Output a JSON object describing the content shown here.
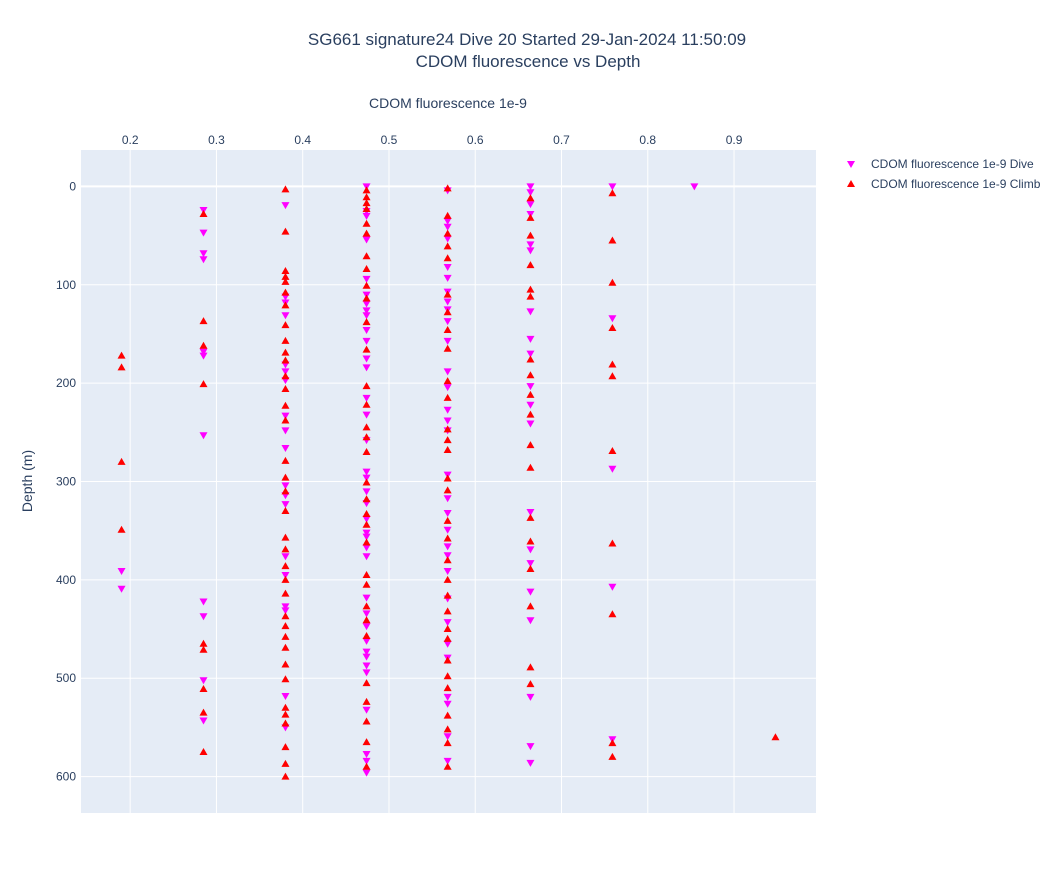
{
  "chart_data": {
    "type": "scatter",
    "title": "SG661 signature24 Dive 20 Started 29-Jan-2024 11:50:09",
    "subtitle": "CDOM fluorescence vs Depth",
    "xlabel": "CDOM fluorescence 1e-9",
    "ylabel": "Depth (m)",
    "xlim": [
      0.143,
      0.995
    ],
    "ylim": [
      637,
      -37
    ],
    "x_ticks": [
      0.2,
      0.3,
      0.4,
      0.5,
      0.6,
      0.7,
      0.8,
      0.9
    ],
    "x_tick_labels": [
      "0.2",
      "0.3",
      "0.4",
      "0.5",
      "0.6",
      "0.7",
      "0.8",
      "0.9"
    ],
    "y_ticks": [
      0,
      100,
      200,
      300,
      400,
      500,
      600
    ],
    "y_tick_labels": [
      "0",
      "100",
      "200",
      "300",
      "400",
      "500",
      "600"
    ],
    "x_axis_position": "top",
    "y_axis_reversed": true,
    "grid": true,
    "plot_bg": "#e5ecf6",
    "legend_position": "top-right",
    "series": [
      {
        "name": "CDOM fluorescence 1e-9 Dive",
        "marker": "triangle-down",
        "color": "#ff00ff",
        "points": [
          [
            0.19,
            391
          ],
          [
            0.19,
            409
          ],
          [
            0.285,
            24
          ],
          [
            0.285,
            47
          ],
          [
            0.285,
            68
          ],
          [
            0.285,
            74
          ],
          [
            0.285,
            168
          ],
          [
            0.285,
            172
          ],
          [
            0.285,
            253
          ],
          [
            0.285,
            422
          ],
          [
            0.285,
            437
          ],
          [
            0.285,
            502
          ],
          [
            0.285,
            543
          ],
          [
            0.38,
            19
          ],
          [
            0.38,
            112
          ],
          [
            0.38,
            118
          ],
          [
            0.38,
            131
          ],
          [
            0.38,
            181
          ],
          [
            0.38,
            188
          ],
          [
            0.38,
            197
          ],
          [
            0.38,
            233
          ],
          [
            0.38,
            248
          ],
          [
            0.38,
            266
          ],
          [
            0.38,
            304
          ],
          [
            0.38,
            314
          ],
          [
            0.38,
            323
          ],
          [
            0.38,
            376
          ],
          [
            0.38,
            395
          ],
          [
            0.38,
            427
          ],
          [
            0.38,
            431
          ],
          [
            0.38,
            518
          ],
          [
            0.38,
            550
          ],
          [
            0.474,
            0
          ],
          [
            0.474,
            25
          ],
          [
            0.474,
            30
          ],
          [
            0.474,
            54
          ],
          [
            0.474,
            94
          ],
          [
            0.474,
            110
          ],
          [
            0.474,
            119
          ],
          [
            0.474,
            126
          ],
          [
            0.474,
            131
          ],
          [
            0.474,
            146
          ],
          [
            0.474,
            157
          ],
          [
            0.474,
            175
          ],
          [
            0.474,
            184
          ],
          [
            0.474,
            215
          ],
          [
            0.474,
            232
          ],
          [
            0.474,
            258
          ],
          [
            0.474,
            290
          ],
          [
            0.474,
            296
          ],
          [
            0.474,
            310
          ],
          [
            0.474,
            322
          ],
          [
            0.474,
            338
          ],
          [
            0.474,
            352
          ],
          [
            0.474,
            356
          ],
          [
            0.474,
            367
          ],
          [
            0.474,
            376
          ],
          [
            0.474,
            418
          ],
          [
            0.474,
            434
          ],
          [
            0.474,
            447
          ],
          [
            0.474,
            462
          ],
          [
            0.474,
            473
          ],
          [
            0.474,
            478
          ],
          [
            0.474,
            487
          ],
          [
            0.474,
            494
          ],
          [
            0.474,
            532
          ],
          [
            0.474,
            577
          ],
          [
            0.474,
            584
          ],
          [
            0.474,
            596
          ],
          [
            0.568,
            4
          ],
          [
            0.568,
            35
          ],
          [
            0.568,
            41
          ],
          [
            0.568,
            53
          ],
          [
            0.568,
            82
          ],
          [
            0.568,
            93
          ],
          [
            0.568,
            107
          ],
          [
            0.568,
            117
          ],
          [
            0.568,
            125
          ],
          [
            0.568,
            137
          ],
          [
            0.568,
            157
          ],
          [
            0.568,
            188
          ],
          [
            0.568,
            204
          ],
          [
            0.568,
            227
          ],
          [
            0.568,
            238
          ],
          [
            0.568,
            248
          ],
          [
            0.568,
            293
          ],
          [
            0.568,
            317
          ],
          [
            0.568,
            332
          ],
          [
            0.568,
            349
          ],
          [
            0.568,
            366
          ],
          [
            0.568,
            375
          ],
          [
            0.568,
            391
          ],
          [
            0.568,
            419
          ],
          [
            0.568,
            443
          ],
          [
            0.568,
            465
          ],
          [
            0.568,
            479
          ],
          [
            0.568,
            519
          ],
          [
            0.568,
            526
          ],
          [
            0.568,
            559
          ],
          [
            0.568,
            584
          ],
          [
            0.664,
            0
          ],
          [
            0.664,
            6
          ],
          [
            0.664,
            18
          ],
          [
            0.664,
            28
          ],
          [
            0.664,
            59
          ],
          [
            0.664,
            65
          ],
          [
            0.664,
            127
          ],
          [
            0.664,
            155
          ],
          [
            0.664,
            170
          ],
          [
            0.664,
            203
          ],
          [
            0.664,
            222
          ],
          [
            0.664,
            241
          ],
          [
            0.664,
            331
          ],
          [
            0.664,
            369
          ],
          [
            0.664,
            383
          ],
          [
            0.664,
            412
          ],
          [
            0.664,
            441
          ],
          [
            0.664,
            519
          ],
          [
            0.664,
            569
          ],
          [
            0.664,
            586
          ],
          [
            0.759,
            0
          ],
          [
            0.759,
            134
          ],
          [
            0.759,
            287
          ],
          [
            0.759,
            407
          ],
          [
            0.759,
            562
          ],
          [
            0.854,
            0
          ]
        ]
      },
      {
        "name": "CDOM fluorescence 1e-9 Climb",
        "marker": "triangle-up",
        "color": "#ff0000",
        "points": [
          [
            0.19,
            172
          ],
          [
            0.19,
            184
          ],
          [
            0.19,
            280
          ],
          [
            0.19,
            349
          ],
          [
            0.285,
            28
          ],
          [
            0.285,
            137
          ],
          [
            0.285,
            162
          ],
          [
            0.285,
            201
          ],
          [
            0.285,
            465
          ],
          [
            0.285,
            471
          ],
          [
            0.285,
            511
          ],
          [
            0.285,
            535
          ],
          [
            0.285,
            575
          ],
          [
            0.38,
            3
          ],
          [
            0.38,
            46
          ],
          [
            0.38,
            86
          ],
          [
            0.38,
            92
          ],
          [
            0.38,
            97
          ],
          [
            0.38,
            108
          ],
          [
            0.38,
            121
          ],
          [
            0.38,
            141
          ],
          [
            0.38,
            157
          ],
          [
            0.38,
            169
          ],
          [
            0.38,
            177
          ],
          [
            0.38,
            193
          ],
          [
            0.38,
            206
          ],
          [
            0.38,
            223
          ],
          [
            0.38,
            238
          ],
          [
            0.38,
            279
          ],
          [
            0.38,
            296
          ],
          [
            0.38,
            310
          ],
          [
            0.38,
            330
          ],
          [
            0.38,
            357
          ],
          [
            0.38,
            369
          ],
          [
            0.38,
            386
          ],
          [
            0.38,
            400
          ],
          [
            0.38,
            414
          ],
          [
            0.38,
            437
          ],
          [
            0.38,
            447
          ],
          [
            0.38,
            458
          ],
          [
            0.38,
            469
          ],
          [
            0.38,
            486
          ],
          [
            0.38,
            501
          ],
          [
            0.38,
            530
          ],
          [
            0.38,
            537
          ],
          [
            0.38,
            546
          ],
          [
            0.38,
            570
          ],
          [
            0.38,
            587
          ],
          [
            0.38,
            600
          ],
          [
            0.474,
            4
          ],
          [
            0.474,
            11
          ],
          [
            0.474,
            17
          ],
          [
            0.474,
            23
          ],
          [
            0.474,
            38
          ],
          [
            0.474,
            48
          ],
          [
            0.474,
            71
          ],
          [
            0.474,
            84
          ],
          [
            0.474,
            101
          ],
          [
            0.474,
            114
          ],
          [
            0.474,
            138
          ],
          [
            0.474,
            166
          ],
          [
            0.474,
            203
          ],
          [
            0.474,
            222
          ],
          [
            0.474,
            245
          ],
          [
            0.474,
            255
          ],
          [
            0.474,
            270
          ],
          [
            0.474,
            301
          ],
          [
            0.474,
            318
          ],
          [
            0.474,
            333
          ],
          [
            0.474,
            344
          ],
          [
            0.474,
            362
          ],
          [
            0.474,
            395
          ],
          [
            0.474,
            405
          ],
          [
            0.474,
            427
          ],
          [
            0.474,
            441
          ],
          [
            0.474,
            457
          ],
          [
            0.474,
            505
          ],
          [
            0.474,
            524
          ],
          [
            0.474,
            544
          ],
          [
            0.474,
            565
          ],
          [
            0.474,
            590
          ],
          [
            0.568,
            2
          ],
          [
            0.568,
            30
          ],
          [
            0.568,
            48
          ],
          [
            0.568,
            61
          ],
          [
            0.568,
            73
          ],
          [
            0.568,
            110
          ],
          [
            0.568,
            128
          ],
          [
            0.568,
            146
          ],
          [
            0.568,
            165
          ],
          [
            0.568,
            198
          ],
          [
            0.568,
            215
          ],
          [
            0.568,
            247
          ],
          [
            0.568,
            258
          ],
          [
            0.568,
            268
          ],
          [
            0.568,
            297
          ],
          [
            0.568,
            309
          ],
          [
            0.568,
            340
          ],
          [
            0.568,
            358
          ],
          [
            0.568,
            380
          ],
          [
            0.568,
            400
          ],
          [
            0.568,
            416
          ],
          [
            0.568,
            432
          ],
          [
            0.568,
            450
          ],
          [
            0.568,
            460
          ],
          [
            0.568,
            482
          ],
          [
            0.568,
            498
          ],
          [
            0.568,
            510
          ],
          [
            0.568,
            538
          ],
          [
            0.568,
            552
          ],
          [
            0.568,
            566
          ],
          [
            0.568,
            590
          ],
          [
            0.664,
            12
          ],
          [
            0.664,
            32
          ],
          [
            0.664,
            50
          ],
          [
            0.664,
            80
          ],
          [
            0.664,
            105
          ],
          [
            0.664,
            112
          ],
          [
            0.664,
            176
          ],
          [
            0.664,
            192
          ],
          [
            0.664,
            212
          ],
          [
            0.664,
            232
          ],
          [
            0.664,
            263
          ],
          [
            0.664,
            286
          ],
          [
            0.664,
            337
          ],
          [
            0.664,
            361
          ],
          [
            0.664,
            389
          ],
          [
            0.664,
            427
          ],
          [
            0.664,
            489
          ],
          [
            0.664,
            506
          ],
          [
            0.759,
            7
          ],
          [
            0.759,
            55
          ],
          [
            0.759,
            98
          ],
          [
            0.759,
            144
          ],
          [
            0.759,
            181
          ],
          [
            0.759,
            193
          ],
          [
            0.759,
            269
          ],
          [
            0.759,
            363
          ],
          [
            0.759,
            435
          ],
          [
            0.759,
            566
          ],
          [
            0.759,
            580
          ],
          [
            0.948,
            560
          ]
        ]
      }
    ]
  }
}
